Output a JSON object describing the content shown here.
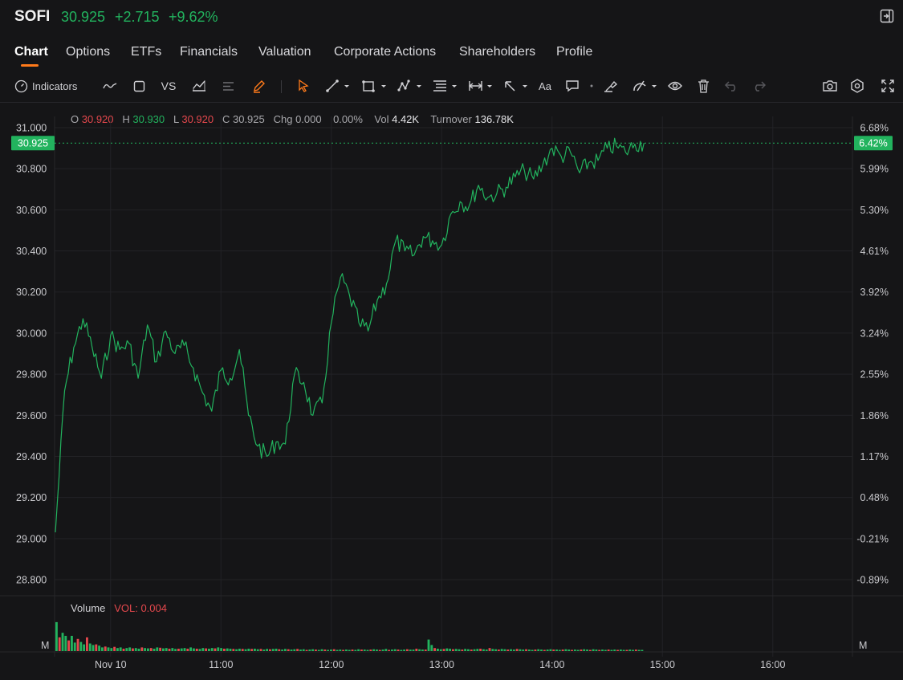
{
  "header": {
    "symbol": "SOFI",
    "price": "30.925",
    "change": "+2.715",
    "change_pct": "+9.62%",
    "up_color": "#22b35e",
    "down_color": "#e5484d",
    "accent_color": "#ff7a1a"
  },
  "tabs": [
    {
      "label": "Chart",
      "active": true
    },
    {
      "label": "Options"
    },
    {
      "label": "ETFs"
    },
    {
      "label": "Financials"
    },
    {
      "label": "Valuation"
    },
    {
      "label": "Corporate Actions"
    },
    {
      "label": "Shareholders"
    },
    {
      "label": "Profile"
    }
  ],
  "toolbar": {
    "indicators_label": "Indicators",
    "vs_label": "VS",
    "text_label": "Aa",
    "icons": [
      "indicators-icon",
      "line-type-icon",
      "rectangle-icon",
      "vs-compare",
      "chart-type-icon",
      "lines-icon",
      "brush-icon",
      "cursor-icon",
      "trend-line-icon",
      "shapes-icon",
      "patterns-icon",
      "fib-icon",
      "measure-icon",
      "arrow-icon",
      "text-tool",
      "comment-icon",
      "magnet-icon",
      "lock-drawings-icon",
      "visibility-icon",
      "trash-icon",
      "undo-icon",
      "redo-icon",
      "camera-icon",
      "settings-icon",
      "fullscreen-icon"
    ]
  },
  "ohlc": {
    "o_label": "O",
    "o": "30.920",
    "h_label": "H",
    "h": "30.930",
    "l_label": "L",
    "l": "30.920",
    "c_label": "C",
    "c": "30.925",
    "chg_label": "Chg",
    "chg": "0.000",
    "chg_pct": "0.00%",
    "vol_label": "Vol",
    "vol": "4.42K",
    "turnover_label": "Turnover",
    "turnover": "136.78K"
  },
  "volume_panel": {
    "label": "Volume",
    "vol_value": "VOL: 0.004",
    "unit_left": "M",
    "unit_right": "M"
  },
  "chart_data": {
    "type": "line",
    "price_ticks": [
      "31.000",
      "30.800",
      "30.600",
      "30.400",
      "30.200",
      "30.000",
      "29.800",
      "29.600",
      "29.400",
      "29.200",
      "29.000",
      "28.800"
    ],
    "pct_ticks": [
      "6.68%",
      "5.99%",
      "5.30%",
      "4.61%",
      "3.92%",
      "3.24%",
      "2.55%",
      "1.86%",
      "1.17%",
      "0.48%",
      "-0.21%",
      "-0.89%"
    ],
    "current_price": "30.925",
    "current_pct": "6.42%",
    "x_ticks": [
      "Nov 10",
      "11:00",
      "12:00",
      "13:00",
      "14:00",
      "15:00",
      "16:00"
    ],
    "ylim": [
      28.8,
      31.0
    ],
    "series": [
      {
        "x": [
          "09:30",
          "09:35",
          "09:40",
          "09:45",
          "09:50",
          "09:55",
          "10:00",
          "10:05",
          "10:10",
          "10:15",
          "10:20",
          "10:25",
          "10:30",
          "10:35",
          "10:40",
          "10:45",
          "10:50",
          "10:55",
          "11:00",
          "11:05",
          "11:10",
          "11:15",
          "11:20",
          "11:25",
          "11:30",
          "11:35",
          "11:40",
          "11:45",
          "11:50",
          "11:55",
          "12:00",
          "12:05",
          "12:10",
          "12:15",
          "12:20",
          "12:25",
          "12:30",
          "12:35",
          "12:40",
          "12:45",
          "12:50",
          "12:55",
          "13:00",
          "13:05",
          "13:10",
          "13:15",
          "13:20",
          "13:25",
          "13:30",
          "13:35",
          "13:40",
          "13:45",
          "13:50",
          "13:55",
          "14:00",
          "14:05",
          "14:10",
          "14:15",
          "14:20",
          "14:25",
          "14:30",
          "14:35",
          "14:40",
          "14:45",
          "14:50"
        ],
        "values": [
          29.03,
          29.72,
          29.93,
          30.07,
          29.93,
          29.78,
          29.99,
          29.92,
          29.95,
          29.78,
          30.04,
          29.86,
          30.01,
          29.9,
          29.94,
          29.83,
          29.71,
          29.62,
          29.82,
          29.78,
          29.92,
          29.6,
          29.45,
          29.4,
          29.47,
          29.46,
          29.8,
          29.76,
          29.6,
          29.66,
          30.05,
          30.27,
          30.18,
          30.05,
          30.01,
          30.16,
          30.24,
          30.45,
          30.4,
          30.38,
          30.47,
          30.45,
          30.43,
          30.58,
          30.64,
          30.62,
          30.72,
          30.66,
          30.68,
          30.71,
          30.76,
          30.79,
          30.75,
          30.82,
          30.9,
          30.86,
          30.88,
          30.78,
          30.83,
          30.84,
          30.9,
          30.91,
          30.88,
          30.92,
          30.925
        ]
      }
    ],
    "volume": {
      "bins_per_bar": 1,
      "values": [
        0.95,
        0.45,
        0.6,
        0.5,
        0.35,
        0.5,
        0.28,
        0.4,
        0.3,
        0.22,
        0.45,
        0.25,
        0.2,
        0.22,
        0.18,
        0.12,
        0.15,
        0.12,
        0.1,
        0.14,
        0.1,
        0.12,
        0.08,
        0.1,
        0.12,
        0.09,
        0.1,
        0.08,
        0.12,
        0.1,
        0.09,
        0.1,
        0.08,
        0.12,
        0.11,
        0.09,
        0.1,
        0.08,
        0.1,
        0.07,
        0.08,
        0.09,
        0.1,
        0.08,
        0.12,
        0.09,
        0.08,
        0.07,
        0.1,
        0.09,
        0.08,
        0.1,
        0.09,
        0.12,
        0.1,
        0.08,
        0.09,
        0.08,
        0.07,
        0.06,
        0.08,
        0.07,
        0.06,
        0.08,
        0.07,
        0.08,
        0.06,
        0.07,
        0.05,
        0.07,
        0.06,
        0.07,
        0.08,
        0.06,
        0.05,
        0.07,
        0.06,
        0.05,
        0.06,
        0.07,
        0.05,
        0.06,
        0.04,
        0.05,
        0.06,
        0.05,
        0.04,
        0.06,
        0.05,
        0.04,
        0.05,
        0.06,
        0.04,
        0.05,
        0.04,
        0.05,
        0.04,
        0.05,
        0.04,
        0.06,
        0.05,
        0.05,
        0.04,
        0.05,
        0.06,
        0.05,
        0.04,
        0.05,
        0.07,
        0.04,
        0.05,
        0.06,
        0.05,
        0.04,
        0.05,
        0.06,
        0.05,
        0.05,
        0.08,
        0.06,
        0.05,
        0.05,
        0.38,
        0.2,
        0.1,
        0.08,
        0.06,
        0.07,
        0.09,
        0.08,
        0.06,
        0.07,
        0.06,
        0.05,
        0.07,
        0.06,
        0.05,
        0.06,
        0.07,
        0.08,
        0.06,
        0.05,
        0.1,
        0.07,
        0.06,
        0.05,
        0.07,
        0.06,
        0.05,
        0.06,
        0.05,
        0.07,
        0.06,
        0.05,
        0.06,
        0.05,
        0.04,
        0.05,
        0.06,
        0.05,
        0.04,
        0.05,
        0.06,
        0.05,
        0.05,
        0.04,
        0.05,
        0.06,
        0.05,
        0.04,
        0.05,
        0.04,
        0.05,
        0.06,
        0.05,
        0.04,
        0.06,
        0.05,
        0.04,
        0.05,
        0.04,
        0.05,
        0.04,
        0.05,
        0.04,
        0.05,
        0.04,
        0.04,
        0.05,
        0.04,
        0.05,
        0.04,
        0.04
      ]
    }
  }
}
